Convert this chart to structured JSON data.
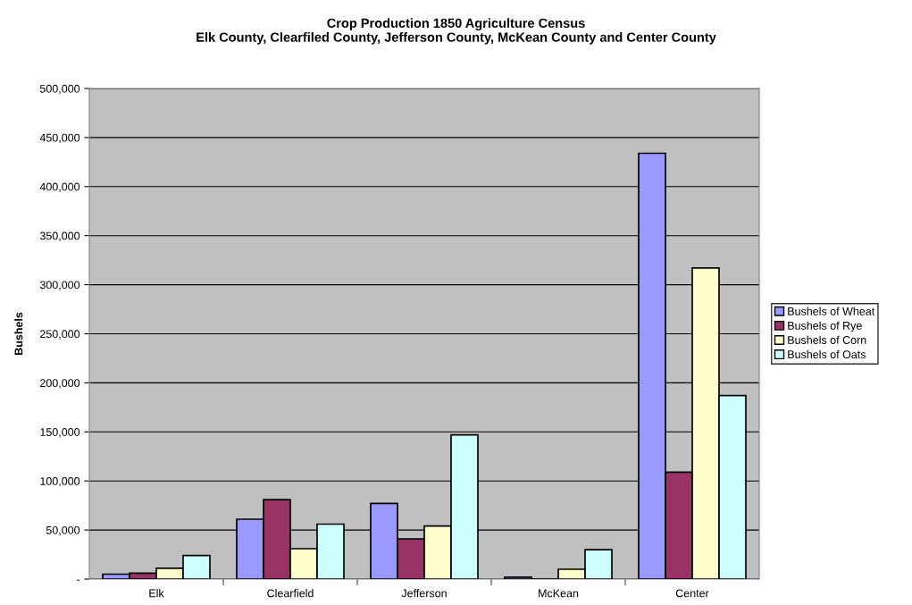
{
  "chart_data": {
    "type": "bar",
    "title": "Crop Production 1850 Agriculture Census\nElk County, Clearfiled County, Jefferson County, McKean County and Center County",
    "ylabel": "Bushels",
    "categories": [
      "Elk",
      "Clearfield",
      "Jefferson",
      "McKean",
      "Center"
    ],
    "series": [
      {
        "name": "Bushels of Wheat",
        "color": "#9999ff",
        "values": [
          5000,
          61000,
          77000,
          2000,
          434000
        ]
      },
      {
        "name": "Bushels of Rye",
        "color": "#993366",
        "values": [
          6000,
          81000,
          41000,
          null,
          109000
        ]
      },
      {
        "name": "Bushels of Corn",
        "color": "#ffffcc",
        "values": [
          11000,
          31000,
          54000,
          10000,
          317000
        ]
      },
      {
        "name": "Bushels of Oats",
        "color": "#ccffff",
        "values": [
          24000,
          56000,
          147000,
          30000,
          187000
        ]
      }
    ],
    "ylim": [
      0,
      500000
    ],
    "yticks": [
      {
        "value": 0,
        "label": "-"
      },
      {
        "value": 50000,
        "label": "50,000"
      },
      {
        "value": 100000,
        "label": "100,000"
      },
      {
        "value": 150000,
        "label": "150,000"
      },
      {
        "value": 200000,
        "label": "200,000"
      },
      {
        "value": 250000,
        "label": "250,000"
      },
      {
        "value": 300000,
        "label": "300,000"
      },
      {
        "value": 350000,
        "label": "350,000"
      },
      {
        "value": 400000,
        "label": "400,000"
      },
      {
        "value": 450000,
        "label": "450,000"
      },
      {
        "value": 500000,
        "label": "500,000"
      }
    ],
    "grid": "y",
    "legend": "right"
  }
}
